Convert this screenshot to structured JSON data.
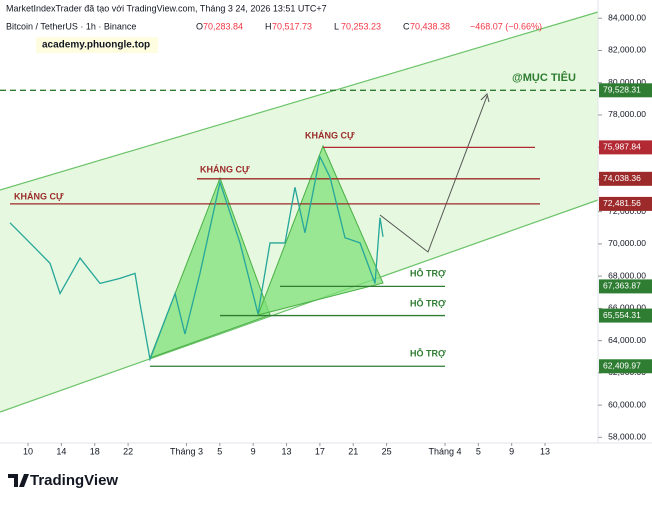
{
  "chart_data": {
    "type": "line",
    "header": "MarketIndexTrader đã tạo với TradingView.com, Tháng 3 24, 2026 13:51 UTC+7",
    "symbol": "Bitcoin / TetherUS · 1h · Binance",
    "ohlc": [
      [
        "O",
        "70,283.84"
      ],
      [
        "H",
        "70,517.73"
      ],
      [
        "L",
        "70,253.23"
      ],
      [
        "C",
        "70,438.38"
      ]
    ],
    "change": "−468.07 (−0.66%)",
    "watermark": "academy.phuongle.top",
    "logo": "TradingView",
    "color": "#26a69a",
    "x": [
      -2.16,
      0.24,
      2.64,
      3.84,
      6.24,
      8.63,
      11.03,
      12.83,
      13.43,
      14.63,
      17.63,
      18.82,
      20.62,
      23.02,
      25.42,
      27.58,
      29.02,
      30.82,
      32.01,
      33.21,
      35.01,
      36.21,
      38.01,
      39.81,
      41.61,
      42.21,
      42.57
    ],
    "values": [
      71310,
      70060,
      68800,
      66920,
      69120,
      67550,
      67860,
      68170,
      66290,
      62840,
      66920,
      64410,
      68170,
      73820,
      70060,
      65660,
      70060,
      70060,
      73510,
      70690,
      75400,
      74140,
      70380,
      70060,
      67550,
      71630,
      70440
    ],
    "xlim": [
      -3.36,
      68.35
    ],
    "xticks": [
      {
        "value": 0,
        "label": "10"
      },
      {
        "value": 4,
        "label": "14"
      },
      {
        "value": 8,
        "label": "18"
      },
      {
        "value": 12,
        "label": "22"
      },
      {
        "value": 19,
        "label": "Tháng 3"
      },
      {
        "value": 23,
        "label": "5"
      },
      {
        "value": 27,
        "label": "9"
      },
      {
        "value": 31,
        "label": "13"
      },
      {
        "value": 35,
        "label": "17"
      },
      {
        "value": 39,
        "label": "21"
      },
      {
        "value": 43,
        "label": "25"
      },
      {
        "value": 50,
        "label": "Tháng 4"
      },
      {
        "value": 54,
        "label": "5"
      },
      {
        "value": 58,
        "label": "9"
      },
      {
        "value": 62,
        "label": "13"
      }
    ],
    "ylim": [
      57650,
      85130
    ],
    "yticks": [
      {
        "value": 58000,
        "label": "58,000.00"
      },
      {
        "value": 60000,
        "label": "60,000.00"
      },
      {
        "value": 62000,
        "label": "62,000.00"
      },
      {
        "value": 64000,
        "label": "64,000.00"
      },
      {
        "value": 66000,
        "label": "66,000.00"
      },
      {
        "value": 68000,
        "label": "68,000.00"
      },
      {
        "value": 70000,
        "label": "70,000.00"
      },
      {
        "value": 72000,
        "label": "72,000.00"
      },
      {
        "value": 74000,
        "label": "74,000.00"
      },
      {
        "value": 76000,
        "label": "76,000.00"
      },
      {
        "value": 78000,
        "label": "78,000.00"
      },
      {
        "value": 80000,
        "label": "80,000.00"
      },
      {
        "value": 82000,
        "label": "82,000.00"
      },
      {
        "value": 84000,
        "label": "84,000.00"
      }
    ],
    "levels": [
      {
        "value": 79528.31,
        "label": "79,528.31",
        "color": "#2e7d32"
      },
      {
        "value": 75987.84,
        "label": "75,987.84",
        "color": "#b22833"
      },
      {
        "value": 74038.36,
        "label": "74,038.36",
        "color": "#9c2a2a"
      },
      {
        "value": 72481.56,
        "label": "72,481.56",
        "color": "#9c2a2a"
      },
      {
        "value": 67363.87,
        "label": "67,363.87",
        "color": "#2e7d32"
      },
      {
        "value": 65554.31,
        "label": "65,554.31",
        "color": "#2e7d32"
      },
      {
        "value": 62409.97,
        "label": "62,409.97",
        "color": "#2e7d32"
      }
    ],
    "annotations": [
      "KHÁNG CỰ",
      "KHÁNG CỰ",
      "KHÁNG CỰ",
      "HỖ TRỢ",
      "HỖ TRỢ",
      "HỖ TRỢ",
      "@MỤC TIÊU"
    ]
  }
}
